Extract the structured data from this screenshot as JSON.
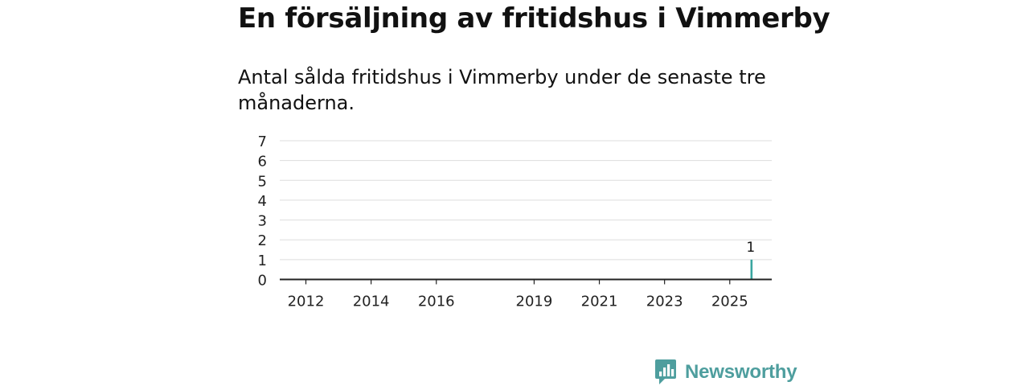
{
  "header": {
    "title": "En försäljning av fritidshus i Vimmerby",
    "subtitle": "Antal sålda fritidshus i Vimmerby under de senaste tre månaderna."
  },
  "brand": {
    "name": "Newsworthy",
    "color": "#4e9e9e"
  },
  "colors": {
    "bar": "#707074",
    "highlight": "#3aa6a0",
    "grid": "#dddddd",
    "axis": "#222222"
  },
  "chart_data": {
    "type": "bar",
    "title": "En försäljning av fritidshus i Vimmerby",
    "subtitle": "Antal sålda fritidshus i Vimmerby under de senaste tre månaderna.",
    "xlabel": "",
    "ylabel": "",
    "ylim": [
      0,
      7
    ],
    "yticks": [
      0,
      1,
      2,
      3,
      4,
      5,
      6,
      7
    ],
    "x_start": "2011-01",
    "x_tick_labels": [
      {
        "label": "2012",
        "month_index": 12
      },
      {
        "label": "2014",
        "month_index": 36
      },
      {
        "label": "2016",
        "month_index": 60
      },
      {
        "label": "2019",
        "month_index": 96
      },
      {
        "label": "2021",
        "month_index": 120
      },
      {
        "label": "2023",
        "month_index": 144
      },
      {
        "label": "2025",
        "month_index": 168
      }
    ],
    "highlight": {
      "month_index": 176,
      "value": 1,
      "label": "1"
    },
    "grid": true,
    "values": [
      0,
      0,
      0,
      0,
      0,
      0,
      0,
      0,
      0,
      0,
      0,
      0,
      0,
      0,
      0,
      0,
      0,
      0,
      0,
      0,
      0,
      0,
      0,
      0,
      0,
      0,
      0,
      0,
      0,
      0,
      0,
      0,
      0,
      0,
      0,
      0,
      0,
      0,
      0,
      0,
      0,
      0,
      0,
      0,
      0,
      0,
      0,
      0,
      0,
      0,
      0,
      0,
      0,
      0,
      0,
      0,
      0,
      0,
      0,
      0,
      0,
      0,
      0,
      0,
      0,
      0,
      0,
      0,
      0,
      0,
      0,
      0,
      0,
      0,
      0,
      0,
      0,
      0,
      0,
      0,
      0,
      0,
      0,
      0,
      0,
      0,
      0,
      0,
      0,
      0,
      0,
      0,
      0,
      0,
      0,
      0,
      0,
      0,
      0,
      0,
      0,
      0,
      0,
      0,
      0,
      0,
      0,
      0,
      0,
      0,
      0,
      0,
      0,
      0,
      0,
      0,
      0,
      0,
      0,
      0,
      0,
      0,
      0,
      0,
      0,
      0,
      0,
      0,
      0,
      0,
      0,
      0,
      0,
      0,
      0,
      0,
      0,
      0,
      0,
      0,
      0,
      0,
      0,
      0,
      0,
      0,
      0,
      0,
      0,
      0,
      0,
      0,
      0,
      0,
      0,
      0,
      0,
      0,
      0,
      0,
      0,
      0,
      0,
      0,
      0,
      0,
      0,
      0,
      0,
      0,
      0,
      0,
      0,
      0,
      0,
      0,
      1
    ]
  }
}
